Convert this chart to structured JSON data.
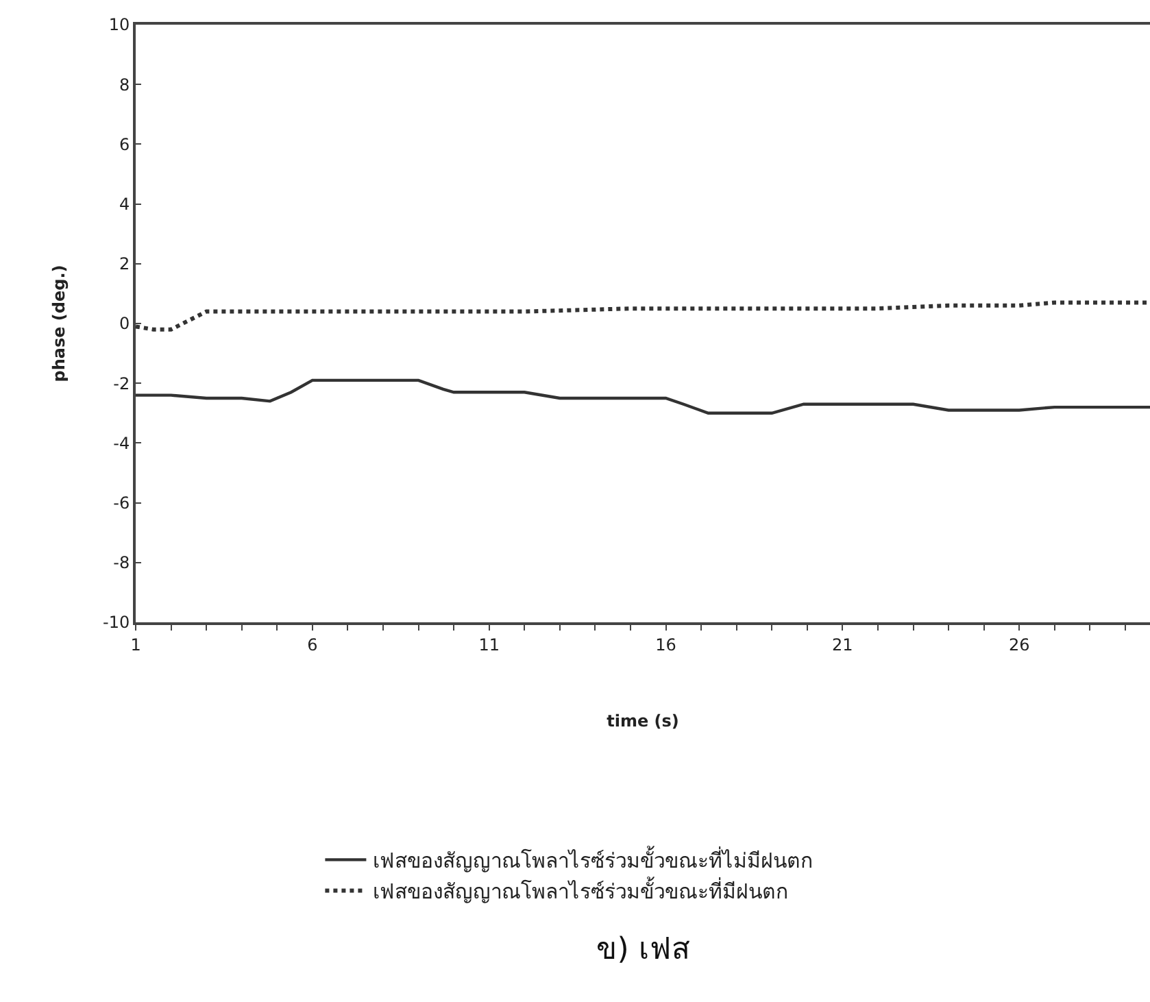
{
  "chart_data": {
    "type": "line",
    "title": "ข) เฟส",
    "xlabel": "time (s)",
    "ylabel": "phase (deg.)",
    "xlim": [
      1,
      29.7
    ],
    "xticks": [
      1,
      {
        "value": 2,
        "label": null
      },
      {
        "value": 3,
        "label": null
      },
      {
        "value": 4,
        "label": null
      },
      {
        "value": 5,
        "label": null
      },
      6,
      {
        "value": 7,
        "label": null
      },
      {
        "value": 8,
        "label": null
      },
      {
        "value": 9,
        "label": null
      },
      {
        "value": 10,
        "label": null
      },
      11,
      {
        "value": 12,
        "label": null
      },
      {
        "value": 13,
        "label": null
      },
      {
        "value": 14,
        "label": null
      },
      {
        "value": 15,
        "label": null
      },
      16,
      {
        "value": 17,
        "label": null
      },
      {
        "value": 18,
        "label": null
      },
      {
        "value": 19,
        "label": null
      },
      {
        "value": 20,
        "label": null
      },
      21,
      {
        "value": 22,
        "label": null
      },
      {
        "value": 23,
        "label": null
      },
      {
        "value": 24,
        "label": null
      },
      {
        "value": 25,
        "label": null
      },
      26,
      {
        "value": 27,
        "label": null
      },
      {
        "value": 28,
        "label": null
      },
      {
        "value": 29,
        "label": null
      }
    ],
    "ylim": [
      -10,
      10
    ],
    "yticks": [
      -10,
      -8,
      -6,
      -4,
      -2,
      0,
      2,
      4,
      6,
      8,
      10
    ],
    "legend": "bottom",
    "marker": "none",
    "series": [
      {
        "name": "เฟสของสัญญาณโพลาไรซ์ร่วมขั้วขณะที่ไม่มีฝนตก",
        "color": "#333333",
        "line_style": "solid",
        "x": [
          1,
          2,
          3,
          4,
          4.8,
          5.4,
          6,
          7,
          8,
          9,
          9.7,
          10,
          11,
          12,
          13,
          14,
          15,
          16,
          16.5,
          17.2,
          18,
          19,
          19.9,
          21,
          22,
          23,
          24,
          25,
          26,
          27,
          28,
          29,
          29.7
        ],
        "values": [
          -2.4,
          -2.4,
          -2.5,
          -2.5,
          -2.6,
          -2.3,
          -1.9,
          -1.9,
          -1.9,
          -1.9,
          -2.2,
          -2.3,
          -2.3,
          -2.3,
          -2.5,
          -2.5,
          -2.5,
          -2.5,
          -2.7,
          -3.0,
          -3.0,
          -3.0,
          -2.7,
          -2.7,
          -2.7,
          -2.7,
          -2.9,
          -2.9,
          -2.9,
          -2.8,
          -2.8,
          -2.8,
          -2.8
        ]
      },
      {
        "name": "เฟสของสัญญาณโพลาไรซ์ร่วมขั้วขณะที่มีฝนตก",
        "color": "#333333",
        "line_style": "dotted",
        "x": [
          1,
          1.5,
          2,
          2.5,
          3,
          4,
          6,
          8,
          10,
          12,
          15,
          18,
          20,
          22,
          24,
          26,
          27,
          28,
          29.7
        ],
        "values": [
          -0.1,
          -0.2,
          -0.2,
          0.1,
          0.4,
          0.4,
          0.4,
          0.4,
          0.4,
          0.4,
          0.5,
          0.5,
          0.5,
          0.5,
          0.6,
          0.6,
          0.7,
          0.7,
          0.7
        ]
      }
    ]
  }
}
